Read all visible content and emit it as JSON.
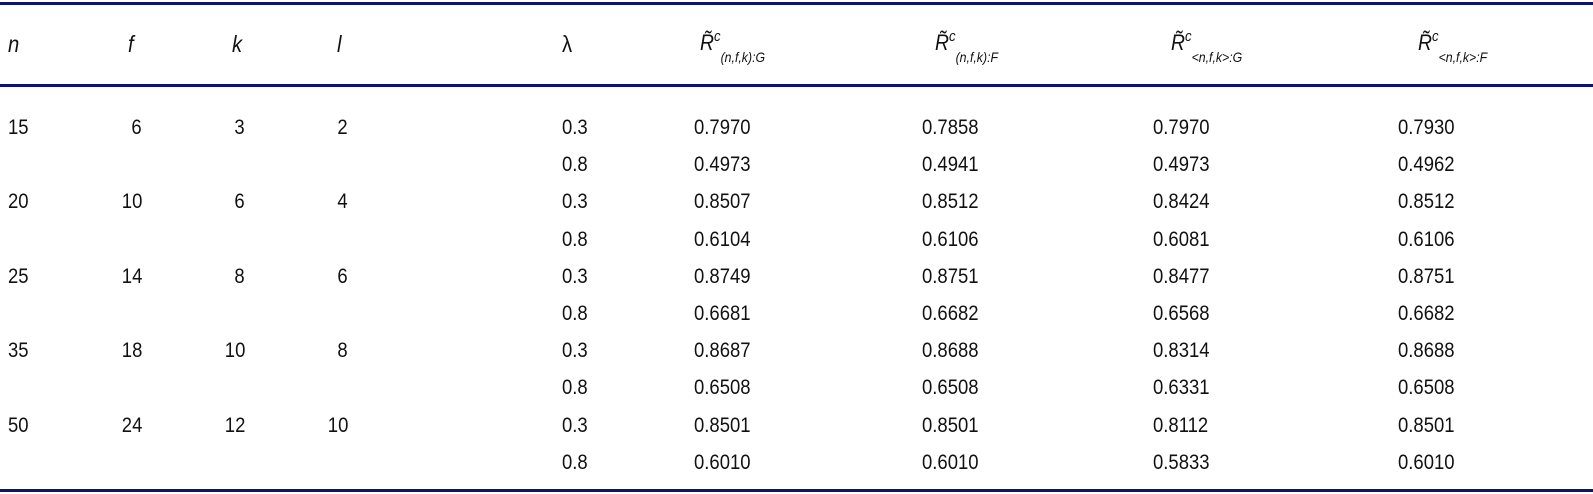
{
  "table": {
    "columns": [
      {
        "label": "n"
      },
      {
        "label": "f"
      },
      {
        "label": "k"
      },
      {
        "label": "l"
      },
      {
        "label": "λ"
      },
      {
        "base": "R̃",
        "sup": "c",
        "sub": "(n,f,k):G"
      },
      {
        "base": "R̃",
        "sup": "c",
        "sub": "(n,f,k):F"
      },
      {
        "base": "R̃",
        "sup": "c",
        "sub": "<n,f,k>:G"
      },
      {
        "base": "R̃",
        "sup": "c",
        "sub": "<n,f,k>:F"
      }
    ],
    "groups": [
      {
        "n": "15",
        "f": "6",
        "k": "3",
        "l": "2",
        "rows": [
          {
            "lambda": "0.3",
            "values": [
              "0.7970",
              "0.7858",
              "0.7970",
              "0.7930"
            ]
          },
          {
            "lambda": "0.8",
            "values": [
              "0.4973",
              "0.4941",
              "0.4973",
              "0.4962"
            ]
          }
        ]
      },
      {
        "n": "20",
        "f": "10",
        "k": "6",
        "l": "4",
        "rows": [
          {
            "lambda": "0.3",
            "values": [
              "0.8507",
              "0.8512",
              "0.8424",
              "0.8512"
            ]
          },
          {
            "lambda": "0.8",
            "values": [
              "0.6104",
              "0.6106",
              "0.6081",
              "0.6106"
            ]
          }
        ]
      },
      {
        "n": "25",
        "f": "14",
        "k": "8",
        "l": "6",
        "rows": [
          {
            "lambda": "0.3",
            "values": [
              "0.8749",
              "0.8751",
              "0.8477",
              "0.8751"
            ]
          },
          {
            "lambda": "0.8",
            "values": [
              "0.6681",
              "0.6682",
              "0.6568",
              "0.6682"
            ]
          }
        ]
      },
      {
        "n": "35",
        "f": "18",
        "k": "10",
        "l": "8",
        "rows": [
          {
            "lambda": "0.3",
            "values": [
              "0.8687",
              "0.8688",
              "0.8314",
              "0.8688"
            ]
          },
          {
            "lambda": "0.8",
            "values": [
              "0.6508",
              "0.6508",
              "0.6331",
              "0.6508"
            ]
          }
        ]
      },
      {
        "n": "50",
        "f": "24",
        "k": "12",
        "l": "10",
        "rows": [
          {
            "lambda": "0.3",
            "values": [
              "0.8501",
              "0.8501",
              "0.8112",
              "0.8501"
            ]
          },
          {
            "lambda": "0.8",
            "values": [
              "0.6010",
              "0.6010",
              "0.5833",
              "0.6010"
            ]
          }
        ]
      }
    ],
    "rule_color": "#101270"
  }
}
